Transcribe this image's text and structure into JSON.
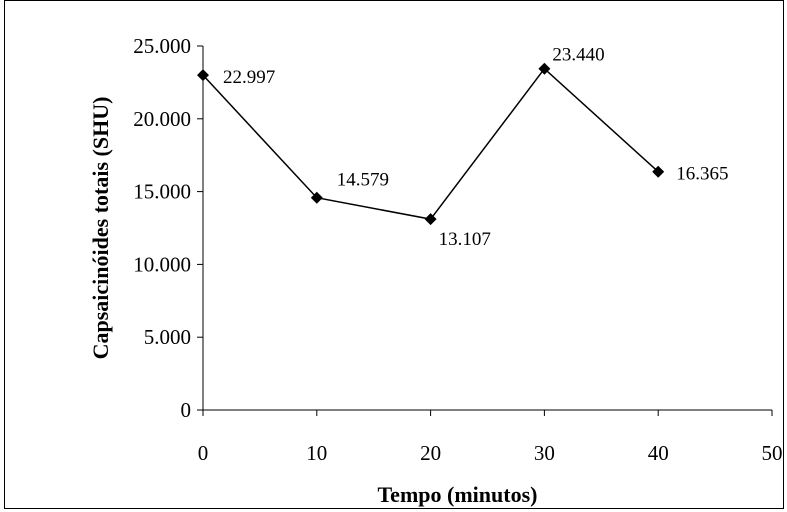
{
  "chart_data": {
    "type": "line",
    "xlabel": "Tempo (minutos)",
    "ylabel": "Capsaicinóides totais (SHU)",
    "xlim": [
      0,
      50
    ],
    "ylim": [
      0,
      25000
    ],
    "x_ticks": [
      0,
      10,
      20,
      30,
      40,
      50
    ],
    "x_tick_labels": [
      "0",
      "10",
      "20",
      "30",
      "40",
      "50"
    ],
    "y_ticks": [
      0,
      5000,
      10000,
      15000,
      20000,
      25000
    ],
    "y_tick_labels": [
      "0",
      "5.000",
      "10.000",
      "15.000",
      "20.000",
      "25.000"
    ],
    "grid": false,
    "legend": "none",
    "series": [
      {
        "x": [
          0,
          10,
          20,
          30,
          40
        ],
        "values": [
          22997,
          14579,
          13107,
          23440,
          16365
        ],
        "data_labels": [
          "22.997",
          "14.579",
          "13.107",
          "23.440",
          "16.365"
        ],
        "marker": "diamond",
        "color": "#000000"
      }
    ]
  }
}
